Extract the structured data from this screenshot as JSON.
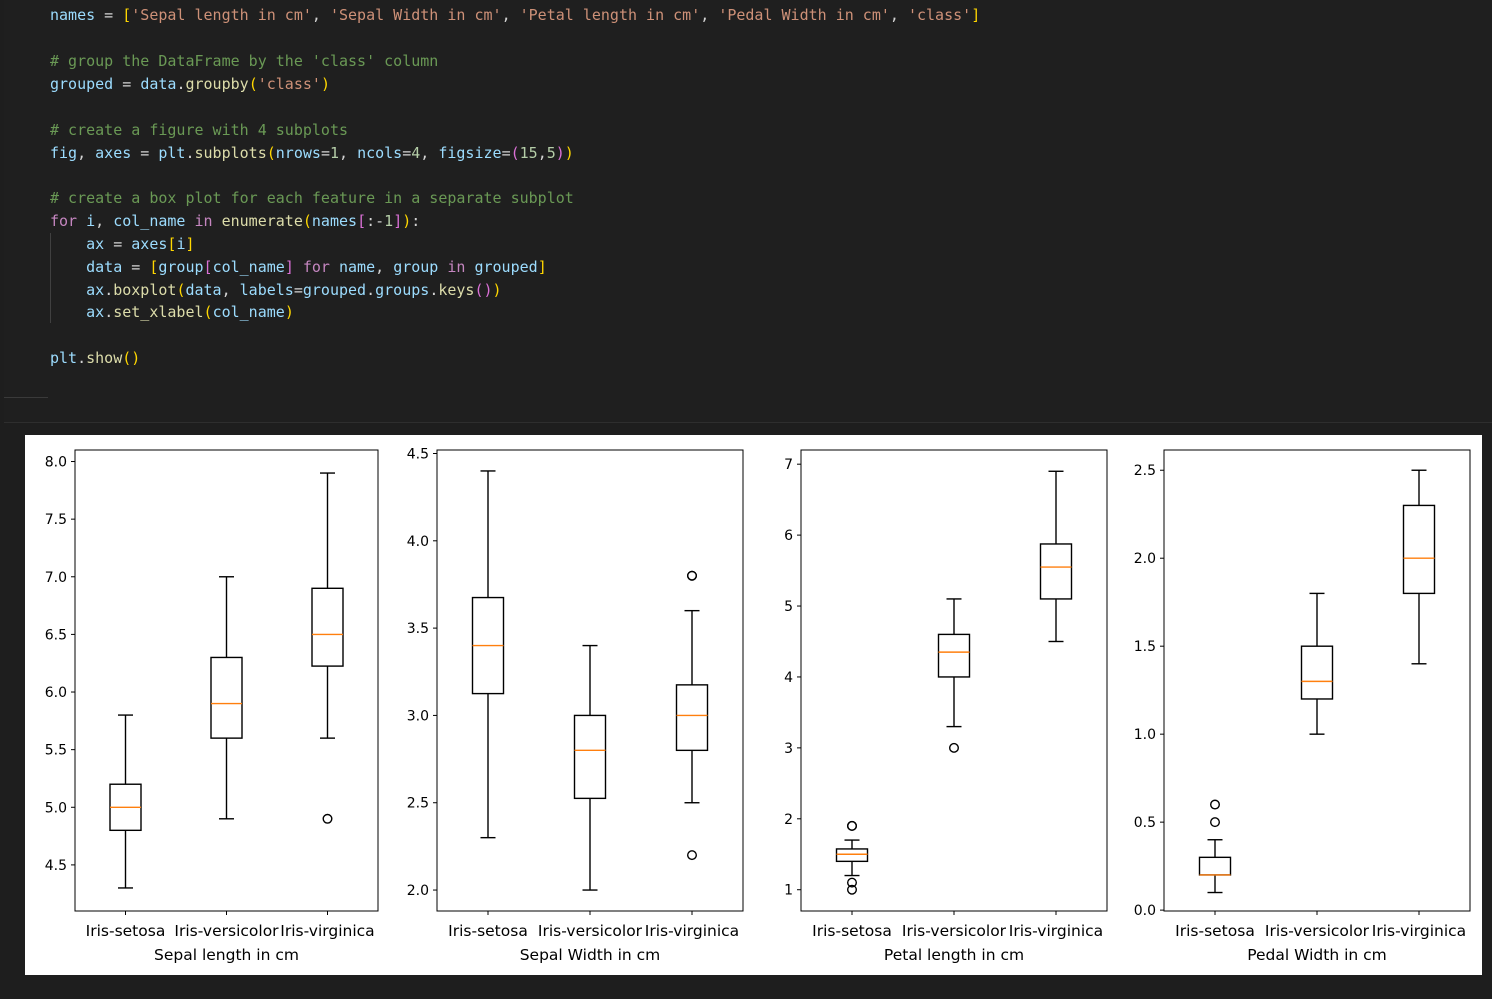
{
  "code": {
    "lines": [
      {
        "tokens": [
          [
            "var",
            "names"
          ],
          [
            "op",
            " = "
          ],
          [
            "p1",
            "["
          ],
          [
            "str",
            "'Sepal length in cm'"
          ],
          [
            "op",
            ", "
          ],
          [
            "str",
            "'Sepal Width in cm'"
          ],
          [
            "op",
            ", "
          ],
          [
            "str",
            "'Petal length in cm'"
          ],
          [
            "op",
            ", "
          ],
          [
            "str",
            "'Pedal Width in cm'"
          ],
          [
            "op",
            ", "
          ],
          [
            "str",
            "'class'"
          ],
          [
            "p1",
            "]"
          ]
        ]
      },
      {
        "tokens": []
      },
      {
        "tokens": [
          [
            "cmt",
            "# group the DataFrame by the 'class' column"
          ]
        ]
      },
      {
        "tokens": [
          [
            "var",
            "grouped"
          ],
          [
            "op",
            " = "
          ],
          [
            "var",
            "data"
          ],
          [
            "op",
            "."
          ],
          [
            "fn",
            "groupby"
          ],
          [
            "p1",
            "("
          ],
          [
            "str",
            "'class'"
          ],
          [
            "p1",
            ")"
          ]
        ]
      },
      {
        "tokens": []
      },
      {
        "tokens": [
          [
            "cmt",
            "# create a figure with 4 subplots"
          ]
        ]
      },
      {
        "tokens": [
          [
            "var",
            "fig"
          ],
          [
            "op",
            ", "
          ],
          [
            "var",
            "axes"
          ],
          [
            "op",
            " = "
          ],
          [
            "var",
            "plt"
          ],
          [
            "op",
            "."
          ],
          [
            "fn",
            "subplots"
          ],
          [
            "p1",
            "("
          ],
          [
            "var",
            "nrows"
          ],
          [
            "op",
            "="
          ],
          [
            "num",
            "1"
          ],
          [
            "op",
            ", "
          ],
          [
            "var",
            "ncols"
          ],
          [
            "op",
            "="
          ],
          [
            "num",
            "4"
          ],
          [
            "op",
            ", "
          ],
          [
            "var",
            "figsize"
          ],
          [
            "op",
            "="
          ],
          [
            "p2",
            "("
          ],
          [
            "num",
            "15"
          ],
          [
            "op",
            ","
          ],
          [
            "num",
            "5"
          ],
          [
            "p2",
            ")"
          ],
          [
            "p1",
            ")"
          ]
        ]
      },
      {
        "tokens": []
      },
      {
        "tokens": [
          [
            "cmt",
            "# create a box plot for each feature in a separate subplot"
          ]
        ]
      },
      {
        "tokens": [
          [
            "kw",
            "for"
          ],
          [
            "op",
            " "
          ],
          [
            "var",
            "i"
          ],
          [
            "op",
            ", "
          ],
          [
            "var",
            "col_name"
          ],
          [
            "op",
            " "
          ],
          [
            "kw",
            "in"
          ],
          [
            "op",
            " "
          ],
          [
            "fn",
            "enumerate"
          ],
          [
            "p1",
            "("
          ],
          [
            "var",
            "names"
          ],
          [
            "p2",
            "["
          ],
          [
            "op",
            ":-"
          ],
          [
            "num",
            "1"
          ],
          [
            "p2",
            "]"
          ],
          [
            "p1",
            ")"
          ],
          [
            "op",
            ":"
          ]
        ]
      },
      {
        "tokens": [
          [
            "op",
            "    "
          ],
          [
            "var",
            "ax"
          ],
          [
            "op",
            " = "
          ],
          [
            "var",
            "axes"
          ],
          [
            "p1",
            "["
          ],
          [
            "var",
            "i"
          ],
          [
            "p1",
            "]"
          ]
        ]
      },
      {
        "tokens": [
          [
            "op",
            "    "
          ],
          [
            "var",
            "data"
          ],
          [
            "op",
            " = "
          ],
          [
            "p1",
            "["
          ],
          [
            "var",
            "group"
          ],
          [
            "p2",
            "["
          ],
          [
            "var",
            "col_name"
          ],
          [
            "p2",
            "]"
          ],
          [
            "op",
            " "
          ],
          [
            "kw",
            "for"
          ],
          [
            "op",
            " "
          ],
          [
            "var",
            "name"
          ],
          [
            "op",
            ", "
          ],
          [
            "var",
            "group"
          ],
          [
            "op",
            " "
          ],
          [
            "kw",
            "in"
          ],
          [
            "op",
            " "
          ],
          [
            "var",
            "grouped"
          ],
          [
            "p1",
            "]"
          ]
        ]
      },
      {
        "tokens": [
          [
            "op",
            "    "
          ],
          [
            "var",
            "ax"
          ],
          [
            "op",
            "."
          ],
          [
            "fn",
            "boxplot"
          ],
          [
            "p1",
            "("
          ],
          [
            "var",
            "data"
          ],
          [
            "op",
            ", "
          ],
          [
            "var",
            "labels"
          ],
          [
            "op",
            "="
          ],
          [
            "var",
            "grouped"
          ],
          [
            "op",
            "."
          ],
          [
            "var",
            "groups"
          ],
          [
            "op",
            "."
          ],
          [
            "fn",
            "keys"
          ],
          [
            "p2",
            "()"
          ],
          [
            "p1",
            ")"
          ]
        ]
      },
      {
        "tokens": [
          [
            "op",
            "    "
          ],
          [
            "var",
            "ax"
          ],
          [
            "op",
            "."
          ],
          [
            "fn",
            "set_xlabel"
          ],
          [
            "p1",
            "("
          ],
          [
            "var",
            "col_name"
          ],
          [
            "p1",
            ")"
          ]
        ]
      },
      {
        "tokens": []
      },
      {
        "tokens": [
          [
            "var",
            "plt"
          ],
          [
            "op",
            "."
          ],
          [
            "fn",
            "show"
          ],
          [
            "p1",
            "()"
          ]
        ]
      }
    ]
  },
  "colors": {
    "median": "#ff7f0e",
    "box": "#000000",
    "background": "#1e1e1e"
  },
  "chart_data": [
    {
      "type": "box",
      "xlabel": "Sepal length in cm",
      "categories": [
        "Iris-setosa",
        "Iris-versicolor",
        "Iris-virginica"
      ],
      "ylim": [
        4.1,
        8.1
      ],
      "yticks": [
        "4.5",
        "5.0",
        "5.5",
        "6.0",
        "6.5",
        "7.0",
        "7.5",
        "8.0"
      ],
      "boxes": [
        {
          "whislo": 4.3,
          "q1": 4.8,
          "med": 5.0,
          "q3": 5.2,
          "whishi": 5.8,
          "fliers": []
        },
        {
          "whislo": 4.9,
          "q1": 5.6,
          "med": 5.9,
          "q3": 6.3,
          "whishi": 7.0,
          "fliers": []
        },
        {
          "whislo": 5.6,
          "q1": 6.225,
          "med": 6.5,
          "q3": 6.9,
          "whishi": 7.9,
          "fliers": [
            4.9
          ]
        }
      ]
    },
    {
      "type": "box",
      "xlabel": "Sepal Width in cm",
      "categories": [
        "Iris-setosa",
        "Iris-versicolor",
        "Iris-virginica"
      ],
      "ylim": [
        1.88,
        4.52
      ],
      "yticks": [
        "2.0",
        "2.5",
        "3.0",
        "3.5",
        "4.0",
        "4.5"
      ],
      "boxes": [
        {
          "whislo": 2.3,
          "q1": 3.125,
          "med": 3.4,
          "q3": 3.675,
          "whishi": 4.4,
          "fliers": []
        },
        {
          "whislo": 2.0,
          "q1": 2.525,
          "med": 2.8,
          "q3": 3.0,
          "whishi": 3.4,
          "fliers": []
        },
        {
          "whislo": 2.5,
          "q1": 2.8,
          "med": 3.0,
          "q3": 3.175,
          "whishi": 3.6,
          "fliers": [
            3.8,
            3.8,
            2.2
          ]
        }
      ]
    },
    {
      "type": "box",
      "xlabel": "Petal length in cm",
      "categories": [
        "Iris-setosa",
        "Iris-versicolor",
        "Iris-virginica"
      ],
      "ylim": [
        0.7,
        7.2
      ],
      "yticks": [
        "1",
        "2",
        "3",
        "4",
        "5",
        "6",
        "7"
      ],
      "boxes": [
        {
          "whislo": 1.2,
          "q1": 1.4,
          "med": 1.5,
          "q3": 1.575,
          "whishi": 1.7,
          "fliers": [
            1.9,
            1.9,
            1.1,
            1.0
          ]
        },
        {
          "whislo": 3.3,
          "q1": 4.0,
          "med": 4.35,
          "q3": 4.6,
          "whishi": 5.1,
          "fliers": [
            3.0
          ]
        },
        {
          "whislo": 4.5,
          "q1": 5.1,
          "med": 5.55,
          "q3": 5.875,
          "whishi": 6.9,
          "fliers": []
        }
      ]
    },
    {
      "type": "box",
      "xlabel": "Pedal Width in cm",
      "categories": [
        "Iris-setosa",
        "Iris-versicolor",
        "Iris-virginica"
      ],
      "ylim": [
        -0.005,
        2.615
      ],
      "yticks": [
        "0.0",
        "0.5",
        "1.0",
        "1.5",
        "2.0",
        "2.5"
      ],
      "boxes": [
        {
          "whislo": 0.1,
          "q1": 0.2,
          "med": 0.2,
          "q3": 0.3,
          "whishi": 0.4,
          "fliers": [
            0.6,
            0.5
          ]
        },
        {
          "whislo": 1.0,
          "q1": 1.2,
          "med": 1.3,
          "q3": 1.5,
          "whishi": 1.8,
          "fliers": []
        },
        {
          "whislo": 1.4,
          "q1": 1.8,
          "med": 2.0,
          "q3": 2.3,
          "whishi": 2.5,
          "fliers": []
        }
      ]
    }
  ]
}
